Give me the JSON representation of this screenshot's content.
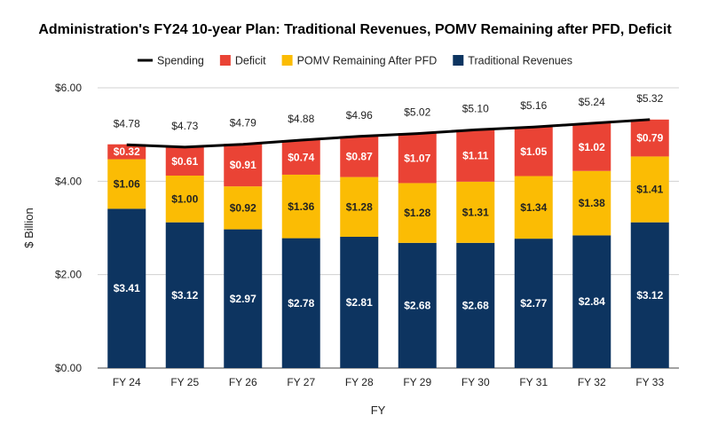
{
  "chart_data": {
    "type": "bar",
    "stacked": true,
    "title": "Administration's FY24 10-year Plan: Traditional Revenues, POMV Remaining after PFD, Deficit",
    "xlabel": "FY",
    "ylabel": "$ Billion",
    "ylim": [
      0,
      6
    ],
    "yticks": [
      "$0.00",
      "$2.00",
      "$4.00",
      "$6.00"
    ],
    "ytick_values": [
      0,
      2,
      4,
      6
    ],
    "grid": true,
    "legend_position": "top",
    "categories": [
      "FY 24",
      "FY 25",
      "FY 26",
      "FY 27",
      "FY 28",
      "FY 29",
      "FY 30",
      "FY 31",
      "FY 32",
      "FY 33"
    ],
    "series": [
      {
        "name": "Traditional Revenues",
        "color": "#0d3460",
        "label_color": "#ffffff",
        "values": [
          3.41,
          3.12,
          2.97,
          2.78,
          2.81,
          2.68,
          2.68,
          2.77,
          2.84,
          3.12
        ],
        "labels": [
          "$3.41",
          "$3.12",
          "$2.97",
          "$2.78",
          "$2.81",
          "$2.68",
          "$2.68",
          "$2.77",
          "$2.84",
          "$3.12"
        ]
      },
      {
        "name": "POMV Remaining After PFD",
        "color": "#fbbc04",
        "label_color": "#222222",
        "values": [
          1.06,
          1.0,
          0.92,
          1.36,
          1.28,
          1.28,
          1.31,
          1.34,
          1.38,
          1.41
        ],
        "labels": [
          "$1.06",
          "$1.00",
          "$0.92",
          "$1.36",
          "$1.28",
          "$1.28",
          "$1.31",
          "$1.34",
          "$1.38",
          "$1.41"
        ]
      },
      {
        "name": "Deficit",
        "color": "#ea4335",
        "label_color": "#ffffff",
        "values": [
          0.32,
          0.61,
          0.91,
          0.74,
          0.87,
          1.07,
          1.11,
          1.05,
          1.02,
          0.79
        ],
        "labels": [
          "$0.32",
          "$0.61",
          "$0.91",
          "$0.74",
          "$0.87",
          "$1.07",
          "$1.11",
          "$1.05",
          "$1.02",
          "$0.79"
        ]
      }
    ],
    "line": {
      "name": "Spending",
      "color": "#000000",
      "values": [
        4.78,
        4.73,
        4.79,
        4.88,
        4.96,
        5.02,
        5.1,
        5.16,
        5.24,
        5.32
      ],
      "labels": [
        "$4.78",
        "$4.73",
        "$4.79",
        "$4.88",
        "$4.96",
        "$5.02",
        "$5.10",
        "$5.16",
        "$5.24",
        "$5.32"
      ]
    },
    "legend_order": [
      "Spending",
      "Deficit",
      "POMV Remaining After PFD",
      "Traditional Revenues"
    ]
  }
}
